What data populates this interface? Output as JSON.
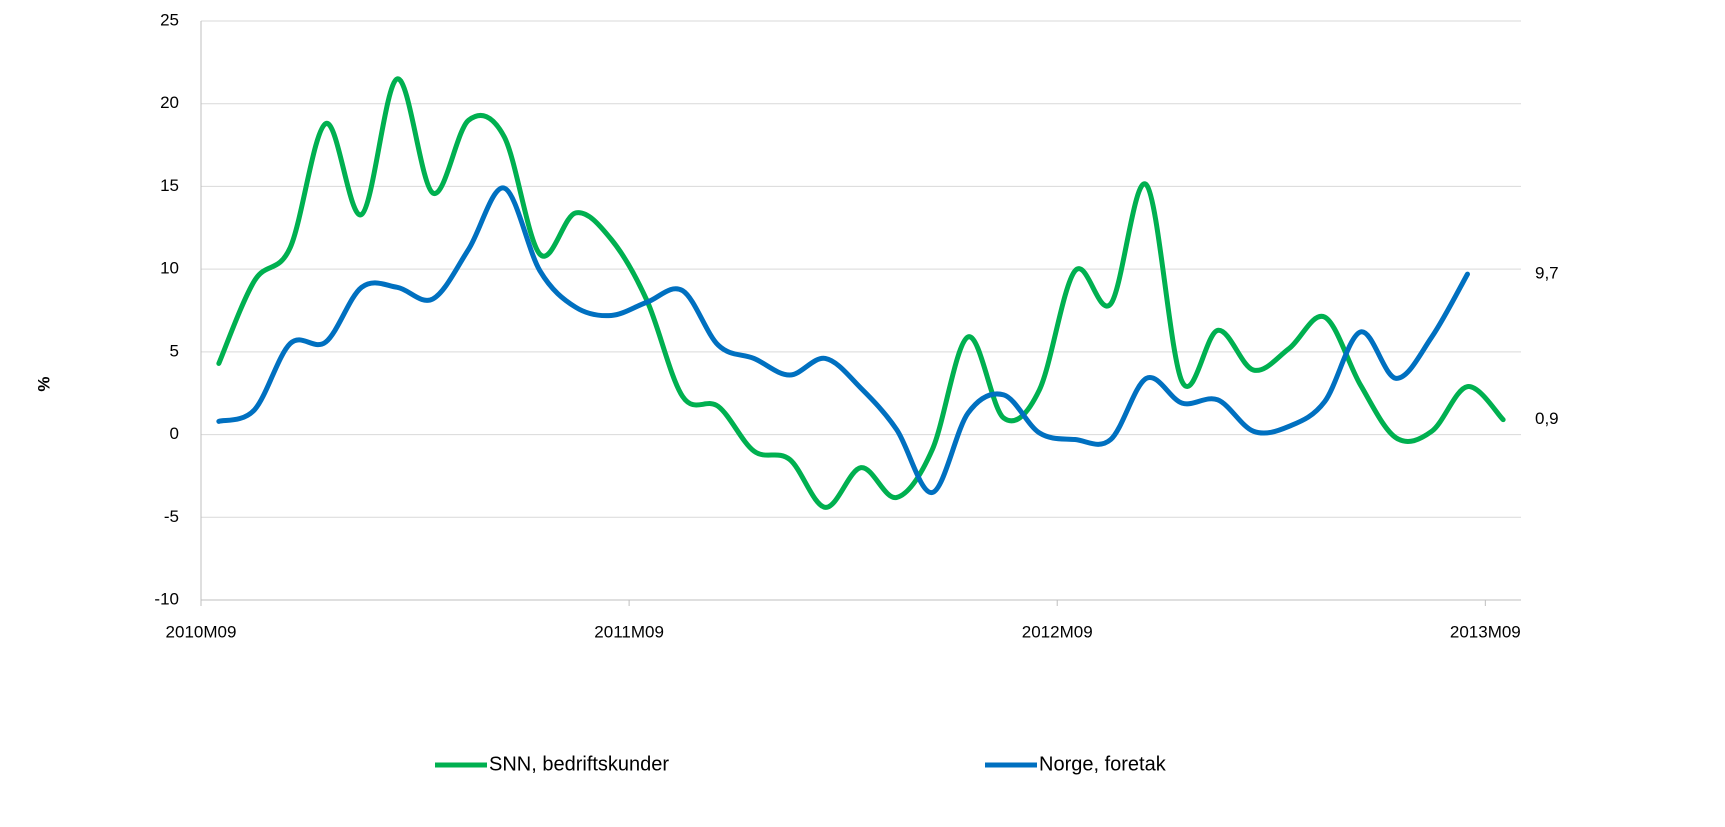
{
  "chart_data": {
    "type": "line",
    "ylabel": "%",
    "categories": [
      "2010M09",
      null,
      null,
      null,
      null,
      null,
      null,
      null,
      null,
      null,
      null,
      null,
      "2011M09",
      null,
      null,
      null,
      null,
      null,
      null,
      null,
      null,
      null,
      null,
      null,
      "2012M09",
      null,
      null,
      null,
      null,
      null,
      null,
      null,
      null,
      null,
      null,
      null,
      "2013M09"
    ],
    "series": [
      {
        "name": "SNN, bedriftskunder",
        "color": "#00b050",
        "values": [
          4.3,
          9.3,
          11.3,
          18.8,
          13.3,
          21.5,
          14.6,
          19.0,
          18.0,
          10.9,
          13.4,
          11.8,
          8.1,
          2.3,
          1.7,
          -1.0,
          -1.5,
          -4.4,
          -2.0,
          -3.8,
          -0.9,
          5.9,
          1.0,
          2.7,
          9.9,
          7.9,
          15.1,
          3.2,
          6.3,
          3.9,
          5.2,
          7.1,
          3.0,
          -0.2,
          0.2,
          2.9,
          0.9
        ],
        "value_labels": [
          null,
          null,
          null,
          null,
          null,
          null,
          null,
          null,
          null,
          null,
          null,
          null,
          null,
          null,
          null,
          null,
          null,
          null,
          null,
          null,
          null,
          null,
          null,
          null,
          null,
          null,
          null,
          null,
          null,
          null,
          null,
          null,
          null,
          null,
          null,
          null,
          "0,9"
        ]
      },
      {
        "name": "Norge, foretak",
        "color": "#0070c0",
        "values": [
          0.8,
          1.5,
          5.5,
          5.6,
          8.9,
          8.9,
          8.2,
          11.2,
          14.9,
          9.9,
          7.7,
          7.2,
          8.0,
          8.7,
          5.4,
          4.6,
          3.6,
          4.6,
          2.8,
          0.3,
          -3.5,
          1.3,
          2.4,
          0.1,
          -0.3,
          -0.3,
          3.4,
          1.9,
          2.1,
          0.2,
          0.5,
          2.0,
          6.2,
          3.4,
          5.9,
          9.7,
          null
        ],
        "value_labels": [
          null,
          null,
          null,
          null,
          null,
          null,
          null,
          null,
          null,
          null,
          null,
          null,
          null,
          null,
          null,
          null,
          null,
          null,
          null,
          null,
          null,
          null,
          null,
          null,
          null,
          null,
          null,
          null,
          null,
          null,
          null,
          null,
          null,
          null,
          null,
          "9,7",
          null
        ]
      }
    ],
    "ylim": [
      -10,
      25
    ],
    "yticks": [
      -10,
      -5,
      0,
      5,
      10,
      15,
      20,
      25
    ],
    "grid": true,
    "legend": "bottom"
  }
}
